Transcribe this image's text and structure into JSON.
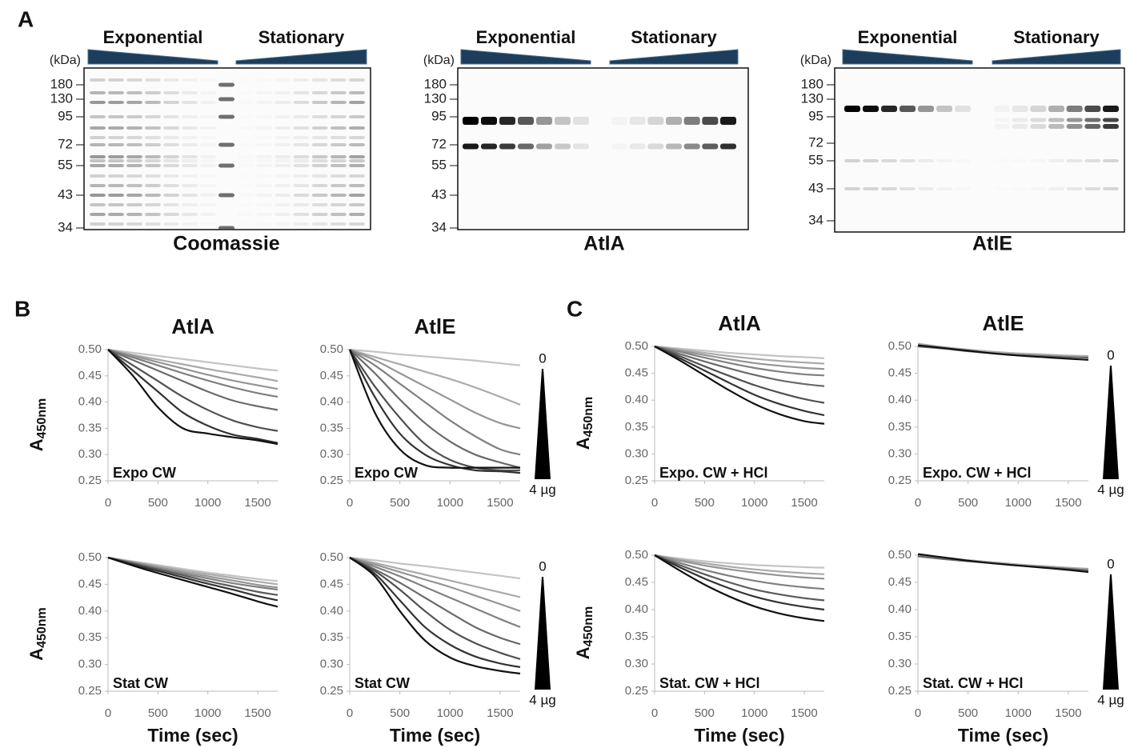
{
  "panel_labels": [
    "A",
    "B",
    "C"
  ],
  "gels": [
    {
      "title": "Coomassie",
      "unit": "(kDa)",
      "markers": [
        180,
        130,
        95,
        72,
        55,
        43,
        34
      ],
      "groups": [
        "Exponential",
        "Stationary"
      ]
    },
    {
      "title": "AtlA",
      "unit": "(kDa)",
      "markers": [
        180,
        130,
        95,
        72,
        55,
        43,
        34
      ],
      "groups": [
        "Exponential",
        "Stationary"
      ]
    },
    {
      "title": "AtlE",
      "unit": "(kDa)",
      "markers": [
        180,
        130,
        95,
        72,
        55,
        43,
        34
      ],
      "groups": [
        "Exponential",
        "Stationary"
      ]
    }
  ],
  "chart_data": [
    {
      "type": "line",
      "title": "AtlA",
      "annotation": "Expo CW",
      "ylabel": "A",
      "ylabel_sub": "450nm",
      "x": [
        0,
        250,
        500,
        750,
        1000,
        1250,
        1500,
        1700
      ],
      "xlim": [
        0,
        1700
      ],
      "xticks": [
        0,
        500,
        1000,
        1500
      ],
      "ylim": [
        0.25,
        0.5
      ],
      "yticks": [
        {
          "value": 0.5,
          "label": "0.50"
        },
        0.45,
        {
          "value": 0.4,
          "label": "0.40"
        },
        0.35,
        {
          "value": 0.3,
          "label": "0.30"
        },
        0.25
      ],
      "series": [
        {
          "color": "#c4c4c4",
          "values": [
            0.5,
            0.494,
            0.488,
            0.482,
            0.476,
            0.47,
            0.464,
            0.46
          ]
        },
        {
          "color": "#aaaaaa",
          "values": [
            0.5,
            0.49,
            0.481,
            0.472,
            0.463,
            0.455,
            0.447,
            0.44
          ]
        },
        {
          "color": "#959595",
          "values": [
            0.5,
            0.488,
            0.476,
            0.464,
            0.452,
            0.441,
            0.432,
            0.425
          ]
        },
        {
          "color": "#808080",
          "values": [
            0.5,
            0.485,
            0.47,
            0.455,
            0.441,
            0.428,
            0.417,
            0.41
          ]
        },
        {
          "color": "#6a6a6a",
          "values": [
            0.5,
            0.48,
            0.46,
            0.44,
            0.42,
            0.403,
            0.392,
            0.385
          ]
        },
        {
          "color": "#505050",
          "values": [
            0.5,
            0.47,
            0.44,
            0.41,
            0.385,
            0.365,
            0.352,
            0.345
          ]
        },
        {
          "color": "#333333",
          "values": [
            0.5,
            0.46,
            0.42,
            0.38,
            0.355,
            0.338,
            0.33,
            0.322
          ]
        },
        {
          "color": "#111111",
          "values": [
            0.5,
            0.45,
            0.39,
            0.35,
            0.34,
            0.333,
            0.327,
            0.32
          ]
        }
      ]
    },
    {
      "type": "line",
      "title": "AtlE",
      "annotation": "Expo CW",
      "dose_top": "0",
      "dose_bottom": "4 µg",
      "x": [
        0,
        250,
        500,
        750,
        1000,
        1250,
        1500,
        1700
      ],
      "xlim": [
        0,
        1700
      ],
      "xticks": [
        0,
        500,
        1000,
        1500
      ],
      "ylim": [
        0.25,
        0.5
      ],
      "yticks": [
        {
          "value": 0.5,
          "label": "0.50"
        },
        0.45,
        {
          "value": 0.4,
          "label": "0.40"
        },
        0.35,
        {
          "value": 0.3,
          "label": "0.30"
        },
        0.25
      ],
      "series": [
        {
          "color": "#c4c4c4",
          "values": [
            0.5,
            0.496,
            0.491,
            0.487,
            0.483,
            0.479,
            0.474,
            0.47
          ]
        },
        {
          "color": "#aaaaaa",
          "values": [
            0.5,
            0.486,
            0.472,
            0.458,
            0.444,
            0.428,
            0.41,
            0.395
          ]
        },
        {
          "color": "#959595",
          "values": [
            0.5,
            0.48,
            0.455,
            0.43,
            0.405,
            0.38,
            0.36,
            0.35
          ]
        },
        {
          "color": "#808080",
          "values": [
            0.5,
            0.47,
            0.435,
            0.4,
            0.365,
            0.335,
            0.31,
            0.3
          ]
        },
        {
          "color": "#6a6a6a",
          "values": [
            0.5,
            0.455,
            0.405,
            0.36,
            0.325,
            0.3,
            0.285,
            0.275
          ]
        },
        {
          "color": "#505050",
          "values": [
            0.5,
            0.43,
            0.37,
            0.32,
            0.29,
            0.275,
            0.27,
            0.27
          ]
        },
        {
          "color": "#333333",
          "values": [
            0.5,
            0.41,
            0.34,
            0.3,
            0.28,
            0.27,
            0.268,
            0.265
          ]
        },
        {
          "color": "#111111",
          "values": [
            0.5,
            0.38,
            0.31,
            0.28,
            0.275,
            0.275,
            0.275,
            0.275
          ]
        }
      ]
    },
    {
      "type": "line",
      "title": "AtlA",
      "annotation": "Expo. CW + HCl",
      "ylabel": "A",
      "ylabel_sub": "450nm",
      "x": [
        0,
        250,
        500,
        750,
        1000,
        1250,
        1500,
        1700
      ],
      "xlim": [
        0,
        1700
      ],
      "xticks": [
        0,
        500,
        1000,
        1500
      ],
      "ylim": [
        0.25,
        0.5
      ],
      "yticks": [
        {
          "value": 0.5,
          "label": "0.50"
        },
        0.45,
        {
          "value": 0.4,
          "label": "0.40"
        },
        0.35,
        {
          "value": 0.3,
          "label": "0.30"
        },
        0.25
      ],
      "series": [
        {
          "color": "#c4c4c4",
          "values": [
            0.5,
            0.496,
            0.492,
            0.488,
            0.485,
            0.482,
            0.48,
            0.478
          ]
        },
        {
          "color": "#aaaaaa",
          "values": [
            0.5,
            0.494,
            0.488,
            0.482,
            0.477,
            0.473,
            0.47,
            0.468
          ]
        },
        {
          "color": "#959595",
          "values": [
            0.5,
            0.492,
            0.484,
            0.476,
            0.469,
            0.464,
            0.46,
            0.458
          ]
        },
        {
          "color": "#808080",
          "values": [
            0.5,
            0.49,
            0.479,
            0.469,
            0.46,
            0.453,
            0.448,
            0.446
          ]
        },
        {
          "color": "#6a6a6a",
          "values": [
            0.5,
            0.486,
            0.472,
            0.459,
            0.447,
            0.437,
            0.43,
            0.426
          ]
        },
        {
          "color": "#505050",
          "values": [
            0.5,
            0.482,
            0.463,
            0.445,
            0.428,
            0.414,
            0.402,
            0.395
          ]
        },
        {
          "color": "#333333",
          "values": [
            0.5,
            0.478,
            0.455,
            0.432,
            0.41,
            0.393,
            0.38,
            0.372
          ]
        },
        {
          "color": "#111111",
          "values": [
            0.5,
            0.474,
            0.446,
            0.418,
            0.393,
            0.374,
            0.361,
            0.356
          ]
        }
      ]
    },
    {
      "type": "line",
      "title": "AtlE",
      "annotation": "Expo. CW + HCl",
      "dose_top": "0",
      "dose_bottom": "4 µg",
      "x": [
        0,
        250,
        500,
        750,
        1000,
        1250,
        1500,
        1700
      ],
      "xlim": [
        0,
        1700
      ],
      "xticks": [
        0,
        500,
        1000,
        1500
      ],
      "ylim": [
        0.25,
        0.5
      ],
      "yticks": [
        {
          "value": 0.5,
          "label": "0.50"
        },
        0.45,
        {
          "value": 0.4,
          "label": "0.40"
        },
        0.35,
        {
          "value": 0.3,
          "label": "0.30"
        },
        0.25
      ],
      "series": [
        {
          "color": "#aaaaaa",
          "values": [
            0.505,
            0.499,
            0.494,
            0.49,
            0.487,
            0.485,
            0.483,
            0.482
          ]
        },
        {
          "color": "#666666",
          "values": [
            0.5,
            0.496,
            0.491,
            0.487,
            0.484,
            0.482,
            0.48,
            0.479
          ]
        },
        {
          "color": "#111111",
          "values": [
            0.502,
            0.497,
            0.492,
            0.487,
            0.483,
            0.48,
            0.477,
            0.475
          ]
        }
      ]
    },
    {
      "type": "line",
      "annotation": "Stat CW",
      "ylabel": "A",
      "ylabel_sub": "450nm",
      "xlabel": "Time (sec)",
      "x": [
        0,
        250,
        500,
        750,
        1000,
        1250,
        1500,
        1700
      ],
      "xlim": [
        0,
        1700
      ],
      "xticks": [
        0,
        500,
        1000,
        1500
      ],
      "ylim": [
        0.25,
        0.5
      ],
      "yticks": [
        {
          "value": 0.5,
          "label": "0.50"
        },
        0.45,
        {
          "value": 0.4,
          "label": "0.40"
        },
        0.35,
        {
          "value": 0.3,
          "label": "0.30"
        },
        0.25
      ],
      "series": [
        {
          "color": "#c4c4c4",
          "values": [
            0.5,
            0.493,
            0.486,
            0.479,
            0.472,
            0.466,
            0.46,
            0.456
          ]
        },
        {
          "color": "#aaaaaa",
          "values": [
            0.5,
            0.492,
            0.484,
            0.476,
            0.469,
            0.462,
            0.455,
            0.45
          ]
        },
        {
          "color": "#959595",
          "values": [
            0.5,
            0.491,
            0.482,
            0.473,
            0.465,
            0.457,
            0.449,
            0.444
          ]
        },
        {
          "color": "#808080",
          "values": [
            0.5,
            0.49,
            0.48,
            0.47,
            0.461,
            0.452,
            0.445,
            0.44
          ]
        },
        {
          "color": "#5a5a5a",
          "values": [
            0.5,
            0.489,
            0.478,
            0.467,
            0.456,
            0.446,
            0.436,
            0.43
          ]
        },
        {
          "color": "#333333",
          "values": [
            0.5,
            0.487,
            0.475,
            0.463,
            0.451,
            0.44,
            0.428,
            0.42
          ]
        },
        {
          "color": "#111111",
          "values": [
            0.5,
            0.485,
            0.471,
            0.458,
            0.445,
            0.432,
            0.418,
            0.408
          ]
        }
      ]
    },
    {
      "type": "line",
      "annotation": "Stat CW",
      "xlabel": "Time (sec)",
      "dose_top": "0",
      "dose_bottom": "4 µg",
      "x": [
        0,
        250,
        500,
        750,
        1000,
        1250,
        1500,
        1700
      ],
      "xlim": [
        0,
        1700
      ],
      "xticks": [
        0,
        500,
        1000,
        1500
      ],
      "ylim": [
        0.25,
        0.5
      ],
      "yticks": [
        {
          "value": 0.5,
          "label": "0.50"
        },
        0.45,
        {
          "value": 0.4,
          "label": "0.40"
        },
        0.35,
        {
          "value": 0.3,
          "label": "0.30"
        },
        0.25
      ],
      "series": [
        {
          "color": "#c4c4c4",
          "values": [
            0.5,
            0.495,
            0.489,
            0.484,
            0.478,
            0.472,
            0.466,
            0.461
          ]
        },
        {
          "color": "#aaaaaa",
          "values": [
            0.5,
            0.49,
            0.479,
            0.468,
            0.457,
            0.446,
            0.435,
            0.426
          ]
        },
        {
          "color": "#959595",
          "values": [
            0.5,
            0.487,
            0.473,
            0.459,
            0.445,
            0.429,
            0.413,
            0.4
          ]
        },
        {
          "color": "#808080",
          "values": [
            0.5,
            0.483,
            0.465,
            0.445,
            0.425,
            0.405,
            0.385,
            0.37
          ]
        },
        {
          "color": "#6a6a6a",
          "values": [
            0.5,
            0.478,
            0.453,
            0.425,
            0.397,
            0.37,
            0.35,
            0.338
          ]
        },
        {
          "color": "#505050",
          "values": [
            0.5,
            0.475,
            0.44,
            0.4,
            0.365,
            0.34,
            0.322,
            0.31
          ]
        },
        {
          "color": "#333333",
          "values": [
            0.5,
            0.47,
            0.42,
            0.37,
            0.337,
            0.315,
            0.302,
            0.295
          ]
        },
        {
          "color": "#111111",
          "values": [
            0.5,
            0.465,
            0.4,
            0.345,
            0.313,
            0.297,
            0.288,
            0.283
          ]
        }
      ]
    },
    {
      "type": "line",
      "annotation": "Stat. CW + HCl",
      "ylabel": "A",
      "ylabel_sub": "450nm",
      "xlabel": "Time (sec)",
      "x": [
        0,
        250,
        500,
        750,
        1000,
        1250,
        1500,
        1700
      ],
      "xlim": [
        0,
        1700
      ],
      "xticks": [
        0,
        500,
        1000,
        1500
      ],
      "ylim": [
        0.25,
        0.5
      ],
      "yticks": [
        {
          "value": 0.5,
          "label": "0.50"
        },
        0.45,
        {
          "value": 0.4,
          "label": "0.40"
        },
        0.35,
        {
          "value": 0.3,
          "label": "0.30"
        },
        0.25
      ],
      "series": [
        {
          "color": "#c4c4c4",
          "values": [
            0.5,
            0.494,
            0.489,
            0.485,
            0.482,
            0.48,
            0.478,
            0.477
          ]
        },
        {
          "color": "#aaaaaa",
          "values": [
            0.5,
            0.492,
            0.485,
            0.479,
            0.474,
            0.47,
            0.467,
            0.465
          ]
        },
        {
          "color": "#959595",
          "values": [
            0.5,
            0.49,
            0.481,
            0.474,
            0.468,
            0.463,
            0.459,
            0.457
          ]
        },
        {
          "color": "#808080",
          "values": [
            0.5,
            0.486,
            0.473,
            0.462,
            0.453,
            0.446,
            0.441,
            0.438
          ]
        },
        {
          "color": "#5a5a5a",
          "values": [
            0.5,
            0.482,
            0.465,
            0.45,
            0.437,
            0.428,
            0.421,
            0.417
          ]
        },
        {
          "color": "#333333",
          "values": [
            0.5,
            0.478,
            0.457,
            0.439,
            0.424,
            0.413,
            0.405,
            0.4
          ]
        },
        {
          "color": "#111111",
          "values": [
            0.5,
            0.472,
            0.446,
            0.424,
            0.406,
            0.393,
            0.384,
            0.379
          ]
        }
      ]
    },
    {
      "type": "line",
      "annotation": "Stat. CW + HCl",
      "xlabel": "Time (sec)",
      "dose_top": "0",
      "dose_bottom": "4 µg",
      "x": [
        0,
        250,
        500,
        750,
        1000,
        1250,
        1500,
        1700
      ],
      "xlim": [
        0,
        1700
      ],
      "xticks": [
        0,
        500,
        1000,
        1500
      ],
      "ylim": [
        0.25,
        0.5
      ],
      "yticks": [
        {
          "value": 0.5,
          "label": "0.50"
        },
        0.45,
        {
          "value": 0.4,
          "label": "0.40"
        },
        0.35,
        {
          "value": 0.3,
          "label": "0.30"
        },
        0.25
      ],
      "series": [
        {
          "color": "#aaaaaa",
          "values": [
            0.5,
            0.496,
            0.491,
            0.487,
            0.483,
            0.48,
            0.477,
            0.475
          ]
        },
        {
          "color": "#666666",
          "values": [
            0.498,
            0.493,
            0.489,
            0.485,
            0.481,
            0.478,
            0.475,
            0.472
          ]
        },
        {
          "color": "#111111",
          "values": [
            0.502,
            0.496,
            0.49,
            0.485,
            0.481,
            0.477,
            0.473,
            0.469
          ]
        }
      ]
    }
  ]
}
